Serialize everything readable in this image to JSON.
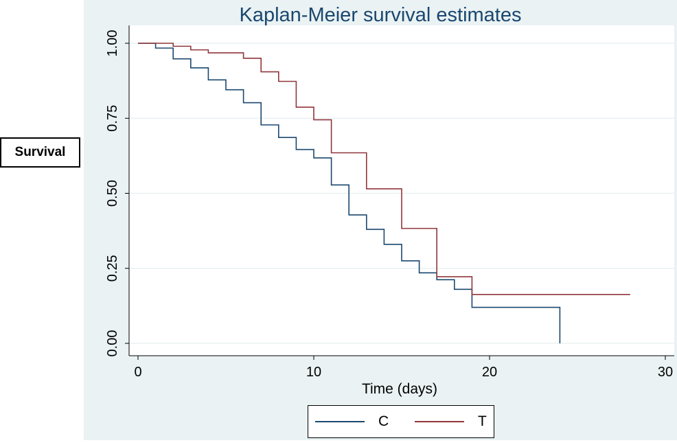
{
  "title": "Kaplan-Meier survival estimates",
  "ylabel_box": "Survival",
  "chart_data": {
    "type": "line",
    "title": "Kaplan-Meier survival estimates",
    "xlabel": "Time (days)",
    "ylabel": "",
    "xlim": [
      0,
      30
    ],
    "ylim": [
      0,
      1
    ],
    "xticks": [
      "0",
      "10",
      "20",
      "30"
    ],
    "yticks": [
      "0.00",
      "0.25",
      "0.50",
      "0.75",
      "1.00"
    ],
    "ytick_values": [
      0,
      0.25,
      0.5,
      0.75,
      1
    ],
    "xtick_values": [
      0,
      10,
      20,
      30
    ],
    "grid": true,
    "legend_position": "bottom",
    "step": true,
    "series": [
      {
        "name": "C",
        "color": "#1a476f",
        "x": [
          0,
          1,
          2,
          3,
          4,
          5,
          6,
          7,
          8,
          9,
          10,
          11,
          12,
          13,
          14,
          15,
          16,
          17,
          18,
          19,
          24,
          24
        ],
        "y": [
          1.0,
          0.984,
          0.948,
          0.918,
          0.878,
          0.845,
          0.802,
          0.728,
          0.686,
          0.646,
          0.618,
          0.528,
          0.428,
          0.38,
          0.33,
          0.275,
          0.235,
          0.212,
          0.18,
          0.12,
          0.12,
          0.0
        ]
      },
      {
        "name": "T",
        "color": "#90353b",
        "x": [
          0,
          2,
          3,
          4,
          6,
          7,
          8,
          9,
          10,
          11,
          13,
          15,
          17,
          19,
          28
        ],
        "y": [
          1.0,
          0.99,
          0.978,
          0.968,
          0.95,
          0.905,
          0.873,
          0.787,
          0.745,
          0.635,
          0.515,
          0.383,
          0.222,
          0.163,
          0.163
        ]
      }
    ]
  }
}
